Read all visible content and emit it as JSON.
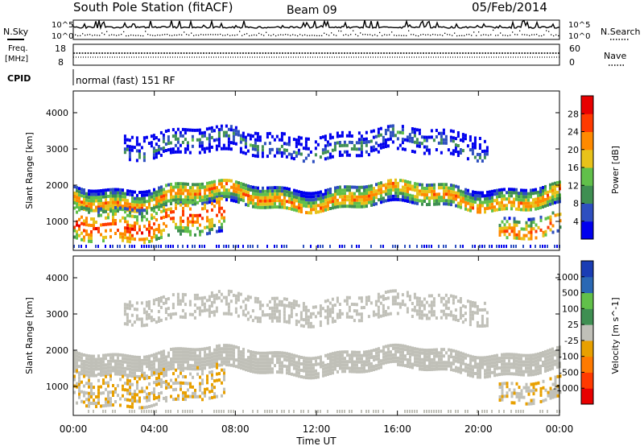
{
  "header": {
    "title": "South Pole Station (fitACF)",
    "beam": "Beam 09",
    "date": "05/Feb/2014",
    "cpid_text": "normal (fast) 151 RF"
  },
  "side_labels": {
    "nsky": "N.Sky",
    "nsearch": "N.Search",
    "freq_line1": "Freq.",
    "freq_line2": "[MHz]",
    "nave": "Nave",
    "cpid": "CPID"
  },
  "small_axes": {
    "noise_left_ticks": [
      "10^5",
      "10^0"
    ],
    "noise_right_ticks": [
      "10^5",
      "10^0"
    ],
    "freq_left_ticks": [
      "18",
      "8"
    ],
    "freq_right_ticks": [
      "60",
      "0"
    ]
  },
  "colors": {
    "power_scale": [
      "#0000ee",
      "#2e4fc0",
      "#3f8f52",
      "#61c04a",
      "#e8c21a",
      "#ff8a00",
      "#ff3a00",
      "#e80000"
    ],
    "velocity_scale": [
      "#e80000",
      "#ff3a00",
      "#ff7a00",
      "#e8a000",
      "#c0c0b8",
      "#3f8f52",
      "#61c04a",
      "#2a68b4",
      "#1a3db4"
    ]
  },
  "chart_data": [
    {
      "type": "heatmap",
      "title": "",
      "xlabel": "Time UT",
      "ylabel": "Slant Range [km]",
      "x_ticks": [
        "00:00",
        "04:00",
        "08:00",
        "12:00",
        "16:00",
        "20:00",
        "00:00"
      ],
      "xlim_hours": [
        0,
        24
      ],
      "ylim": [
        200,
        4600
      ],
      "y_ticks": [
        1000,
        2000,
        3000,
        4000
      ],
      "colorbar": {
        "label": "Power [dB]",
        "ticks": [
          "4",
          "8",
          "12",
          "16",
          "20",
          "24",
          "28"
        ],
        "range": [
          0,
          30
        ]
      },
      "features": [
        {
          "name": "main band",
          "range_km": [
            1400,
            2000
          ],
          "hours": [
            0,
            24
          ],
          "power_db": 22
        },
        {
          "name": "upper patch",
          "range_km": [
            2800,
            3500
          ],
          "hours": [
            2.5,
            20.5
          ],
          "power_db": 10
        },
        {
          "name": "lower bursts",
          "range_km": [
            600,
            1500
          ],
          "hours": [
            0,
            7.5
          ],
          "power_db": 26
        },
        {
          "name": "late bursts",
          "range_km": [
            600,
            1200
          ],
          "hours": [
            21,
            24
          ],
          "power_db": 24
        }
      ]
    },
    {
      "type": "heatmap",
      "title": "",
      "xlabel": "Time UT",
      "ylabel": "Slant Range [km]",
      "x_ticks": [
        "00:00",
        "04:00",
        "08:00",
        "12:00",
        "16:00",
        "20:00",
        "00:00"
      ],
      "xlim_hours": [
        0,
        24
      ],
      "ylim": [
        200,
        4600
      ],
      "y_ticks": [
        1000,
        2000,
        3000,
        4000
      ],
      "colorbar": {
        "label": "Velocity [m s^-1]",
        "ticks": [
          "1000",
          "500",
          "100",
          "25",
          "-25",
          "-100",
          "-500",
          "-1000"
        ],
        "range": [
          -1500,
          1500
        ]
      },
      "features": [
        {
          "name": "ground scatter band",
          "range_km": [
            1400,
            2000
          ],
          "hours": [
            0,
            24
          ],
          "velocity": 0
        },
        {
          "name": "upper patch",
          "range_km": [
            2800,
            3500
          ],
          "hours": [
            2.5,
            20.5
          ],
          "velocity": 10
        },
        {
          "name": "negative flows",
          "range_km": [
            600,
            1500
          ],
          "hours": [
            0,
            7.5
          ],
          "velocity": -150
        },
        {
          "name": "late negative flows",
          "range_km": [
            600,
            1200
          ],
          "hours": [
            21,
            24
          ],
          "velocity": -150
        }
      ]
    }
  ]
}
